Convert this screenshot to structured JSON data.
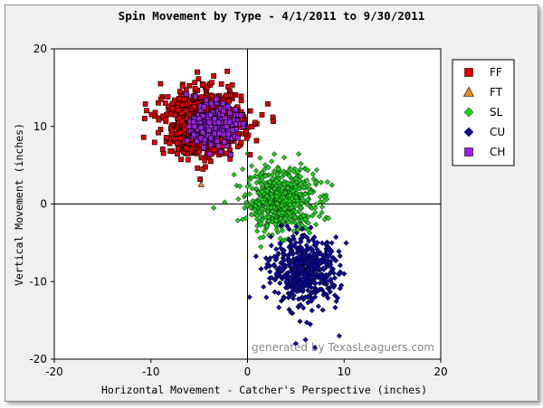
{
  "chart_data": {
    "type": "scatter",
    "title": "Spin Movement by Type - 4/1/2011 to 9/30/2011",
    "xlabel": "Horizontal Movement - Catcher's Perspective (inches)",
    "ylabel": "Vertical Movement (inches)",
    "xlim": [
      -20,
      20
    ],
    "ylim": [
      -20,
      20
    ],
    "x_ticks": [
      "-20",
      "-10",
      "0",
      "10",
      "20"
    ],
    "y_ticks": [
      "20",
      "10",
      "0",
      "-10",
      "-20"
    ],
    "grid": false,
    "legend_position": "right",
    "watermark": "generated by TexasLeaguers.com",
    "series": [
      {
        "name": "FF",
        "marker": "square",
        "color": "#dd0000",
        "count": 900,
        "center": [
          -4.5,
          10.5
        ],
        "spread": [
          2.0,
          2.0
        ],
        "x": [
          -8.5,
          -7.8,
          -7.0,
          -6.2,
          -5.5,
          -4.8,
          -4.2,
          -3.5,
          -2.8,
          -2.0,
          -1.5,
          -0.5,
          0.8,
          1.5,
          -7.5,
          -6.5,
          -5.8,
          -4.0,
          -3.2,
          -2.5,
          -6.0,
          -5.0,
          -3.0,
          -4.5,
          -2.2,
          -3.8,
          -4.6,
          -9.0,
          -5.2,
          -3.4,
          -1.8,
          -6.8,
          -4.9,
          0.3
        ],
        "y": [
          13.0,
          9.5,
          14.5,
          11.0,
          12.5,
          13.8,
          15.0,
          16.5,
          12.0,
          9.0,
          10.5,
          11.5,
          10.5,
          11.5,
          11.5,
          8.0,
          7.0,
          6.0,
          8.5,
          12.5,
          10.0,
          11.0,
          9.5,
          8.5,
          14.0,
          5.5,
          4.5,
          15.5,
          17.0,
          7.0,
          5.8,
          12.8,
          3.2,
          12.0
        ]
      },
      {
        "name": "FT",
        "marker": "triangle",
        "color": "#f08c1e",
        "count": 1,
        "x": [
          -4.8
        ],
        "y": [
          2.5
        ]
      },
      {
        "name": "SL",
        "marker": "diamond",
        "color": "#22cc22",
        "count": 620,
        "center": [
          3.5,
          0.5
        ],
        "spread": [
          1.8,
          2.0
        ],
        "x": [
          0.5,
          1.0,
          1.5,
          2.0,
          2.5,
          3.0,
          3.5,
          4.0,
          4.5,
          5.0,
          5.5,
          6.0,
          6.5,
          7.0,
          2.2,
          3.2,
          4.2,
          5.2,
          1.2,
          3.8,
          -0.5,
          0.0,
          4.8,
          2.8,
          8.0,
          -3.5,
          5.8
        ],
        "y": [
          2.0,
          -1.5,
          4.0,
          1.0,
          5.5,
          3.0,
          -3.0,
          0.5,
          2.5,
          -1.0,
          3.5,
          -2.0,
          1.5,
          -0.5,
          -4.0,
          4.5,
          -4.5,
          0.0,
          0.0,
          6.0,
          4.5,
          6.5,
          -3.5,
          2.0,
          -2.0,
          -0.5,
          -1.5
        ]
      },
      {
        "name": "CU",
        "marker": "diamond",
        "color": "#0a0a99",
        "count": 560,
        "center": [
          6.0,
          -8.5
        ],
        "spread": [
          1.7,
          2.0
        ],
        "x": [
          3.0,
          4.0,
          5.0,
          6.0,
          7.0,
          8.0,
          9.0,
          10.0,
          4.5,
          5.5,
          6.5,
          7.5,
          3.5,
          8.5,
          2.5,
          5.0,
          6.0,
          7.0,
          0.2,
          4.8,
          6.2,
          9.5
        ],
        "y": [
          -7.0,
          -10.0,
          -5.0,
          -12.0,
          -8.0,
          -6.5,
          -10.5,
          -9.0,
          -14.0,
          -13.0,
          -15.5,
          -11.0,
          -12.5,
          -7.5,
          -9.5,
          -18.0,
          -17.5,
          -18.5,
          -12.0,
          -4.5,
          -20.5,
          -17.0
        ]
      },
      {
        "name": "CH",
        "marker": "square",
        "color": "#9922dd",
        "count": 240,
        "center": [
          -3.5,
          10.0
        ],
        "spread": [
          1.2,
          1.3
        ],
        "x": [
          -5.0,
          -4.0,
          -3.0,
          -2.5,
          -3.8,
          -4.5,
          -2.0,
          -3.2,
          -5.5,
          -3.0
        ],
        "y": [
          11.0,
          9.5,
          10.5,
          12.0,
          8.5,
          12.5,
          9.0,
          13.5,
          10.0,
          7.5
        ]
      }
    ]
  }
}
